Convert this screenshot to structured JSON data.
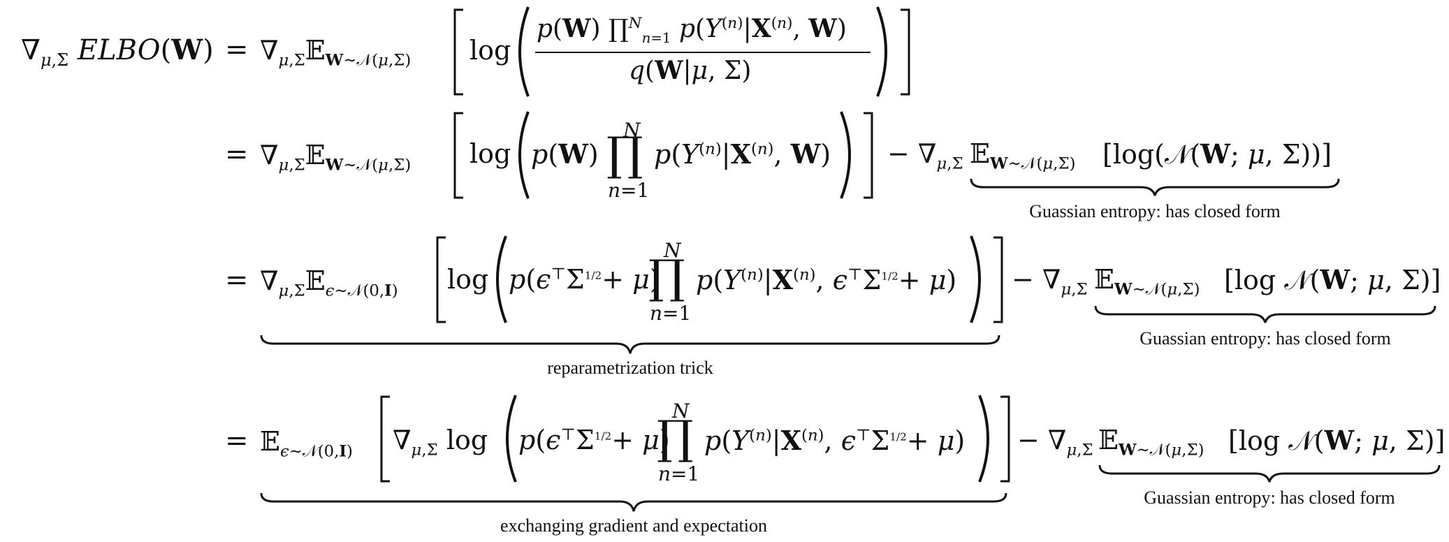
{
  "lines": [
    {
      "lhs": "∇μ,Σ ELBO(W)",
      "eq": "=",
      "expectation": "∇μ,Σ𝔼W∼𝒩(μ,Σ)",
      "body": "log( p(W) ∏n=1N p(Y(n)|X(n), W) / q(W|μ, Σ) )"
    },
    {
      "eq": "=",
      "expectation": "∇μ,Σ𝔼W∼𝒩(μ,Σ)",
      "body": "log( p(W) ∏n=1N p(Y(n)|X(n), W) )",
      "minus_term": "− ∇μ,Σ𝔼W∼𝒩(μ,Σ) [log(𝒩(W; μ, Σ))]",
      "brace_note": "Guassian entropy: has closed form"
    },
    {
      "eq": "=",
      "expectation": "∇μ,Σ𝔼ϵ∼𝒩(0,I)",
      "body": "log( p(ϵ⊤Σ1/2 + μ) ∏n=1N p(Y(n)|X(n), ϵ⊤Σ1/2 + μ) )",
      "brace_note": "reparametrization trick",
      "minus_term": "− ∇μ,Σ𝔼W∼𝒩(μ,Σ) [log 𝒩(W; μ, Σ)]",
      "minus_brace_note": "Guassian entropy: has closed form"
    },
    {
      "eq": "=",
      "expectation": "𝔼ϵ∼𝒩(0,I)",
      "body": "∇μ,Σ log( p(ϵ⊤Σ1/2 + μ) ∏n=1N p(Y(n)|X(n), ϵ⊤Σ1/2 + μ) )",
      "brace_note": "exchanging gradient and expectation",
      "minus_term": "− ∇μ,Σ𝔼W∼𝒩(μ,Σ) [log 𝒩(W; μ, Σ)]",
      "minus_brace_note": "Guassian entropy: has closed form"
    }
  ]
}
